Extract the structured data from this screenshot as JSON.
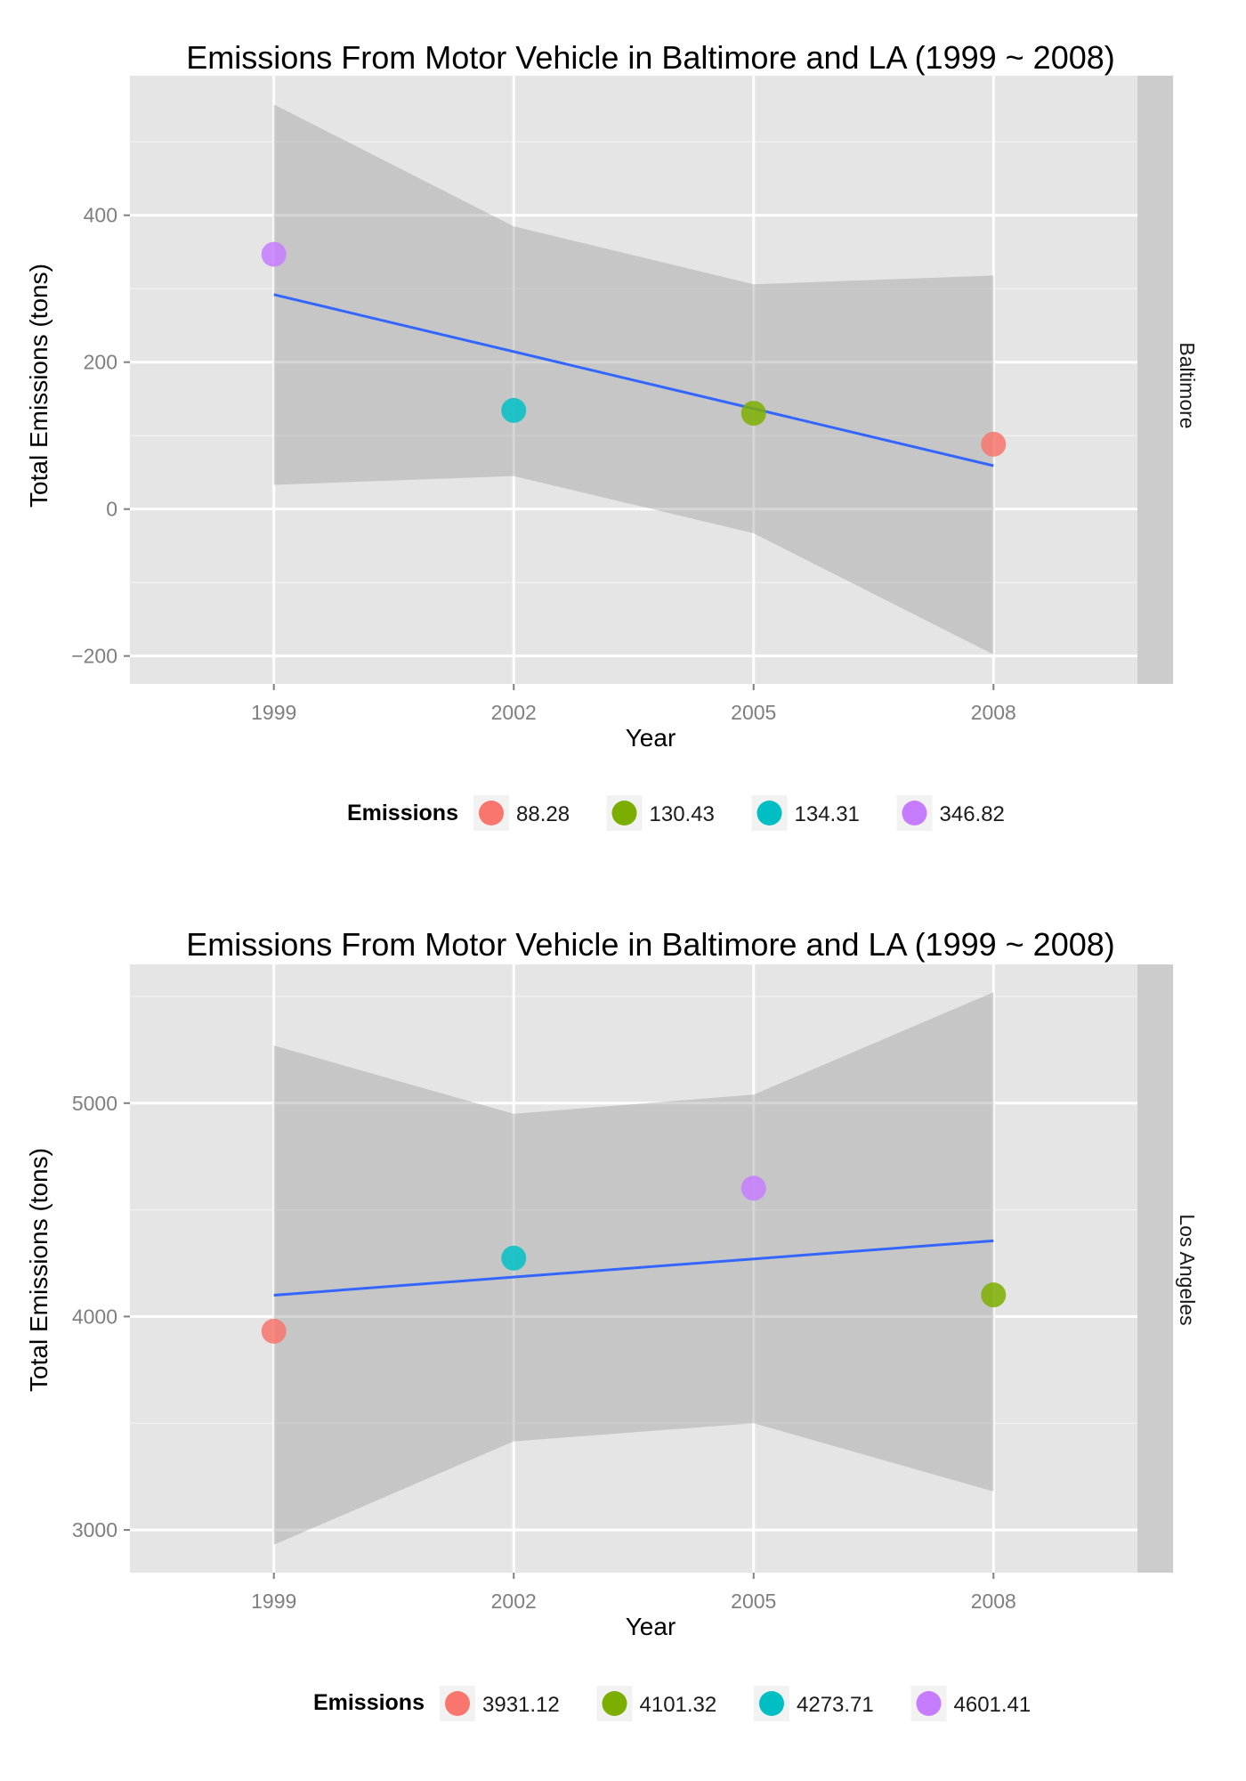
{
  "chart_data": [
    {
      "type": "scatter",
      "title": "Emissions From Motor Vehicle in Baltimore and LA (1999 ~ 2008)",
      "facet": "Baltimore",
      "xlabel": "Year",
      "ylabel": "Total Emissions (tons)",
      "x_ticks": [
        "1999",
        "2002",
        "2005",
        "2008"
      ],
      "y_ticks": [
        "−200",
        "0",
        "200",
        "400"
      ],
      "xlim": [
        1997.2,
        2009.8
      ],
      "ylim": [
        -238,
        590
      ],
      "grid": true,
      "legend_position": "bottom",
      "legend_title": "Emissions",
      "points": [
        {
          "x": 1999,
          "y": 346.82,
          "label": "346.82",
          "color": "#C77CFF"
        },
        {
          "x": 2002,
          "y": 134.31,
          "label": "134.31",
          "color": "#00BFC4"
        },
        {
          "x": 2005,
          "y": 130.43,
          "label": "130.43",
          "color": "#7CAE00"
        },
        {
          "x": 2008,
          "y": 88.28,
          "label": "88.28",
          "color": "#F8766D"
        }
      ],
      "fit_line": {
        "x": [
          1999,
          2008
        ],
        "y": [
          292,
          59
        ],
        "color": "#3366FF"
      },
      "confidence_band": {
        "x": [
          1999,
          2002,
          2005,
          2008
        ],
        "upper": [
          551,
          385,
          306,
          318
        ],
        "lower": [
          33,
          45,
          -33,
          -198
        ]
      },
      "legend": [
        {
          "label": "88.28",
          "color": "#F8766D"
        },
        {
          "label": "130.43",
          "color": "#7CAE00"
        },
        {
          "label": "134.31",
          "color": "#00BFC4"
        },
        {
          "label": "346.82",
          "color": "#C77CFF"
        }
      ]
    },
    {
      "type": "scatter",
      "title": "Emissions From Motor Vehicle in Baltimore and LA (1999 ~ 2008)",
      "facet": "Los Angeles",
      "xlabel": "Year",
      "ylabel": "Total Emissions (tons)",
      "x_ticks": [
        "1999",
        "2002",
        "2005",
        "2008"
      ],
      "y_ticks": [
        "3000",
        "4000",
        "5000"
      ],
      "xlim": [
        1997.2,
        2009.8
      ],
      "ylim": [
        2800,
        5650
      ],
      "grid": true,
      "legend_position": "bottom",
      "legend_title": "Emissions",
      "points": [
        {
          "x": 1999,
          "y": 3931.12,
          "label": "3931.12",
          "color": "#F8766D"
        },
        {
          "x": 2002,
          "y": 4273.71,
          "label": "4273.71",
          "color": "#00BFC4"
        },
        {
          "x": 2005,
          "y": 4601.41,
          "label": "4601.41",
          "color": "#C77CFF"
        },
        {
          "x": 2008,
          "y": 4101.32,
          "label": "4101.32",
          "color": "#7CAE00"
        }
      ],
      "fit_line": {
        "x": [
          1999,
          2008
        ],
        "y": [
          4100,
          4355
        ],
        "color": "#3366FF"
      },
      "confidence_band": {
        "x": [
          1999,
          2002,
          2005,
          2008
        ],
        "upper": [
          5270,
          4950,
          5040,
          5520
        ],
        "lower": [
          2930,
          3415,
          3500,
          3180
        ]
      },
      "legend": [
        {
          "label": "3931.12",
          "color": "#F8766D"
        },
        {
          "label": "4101.32",
          "color": "#7CAE00"
        },
        {
          "label": "4273.71",
          "color": "#00BFC4"
        },
        {
          "label": "4601.41",
          "color": "#C77CFF"
        }
      ]
    }
  ]
}
